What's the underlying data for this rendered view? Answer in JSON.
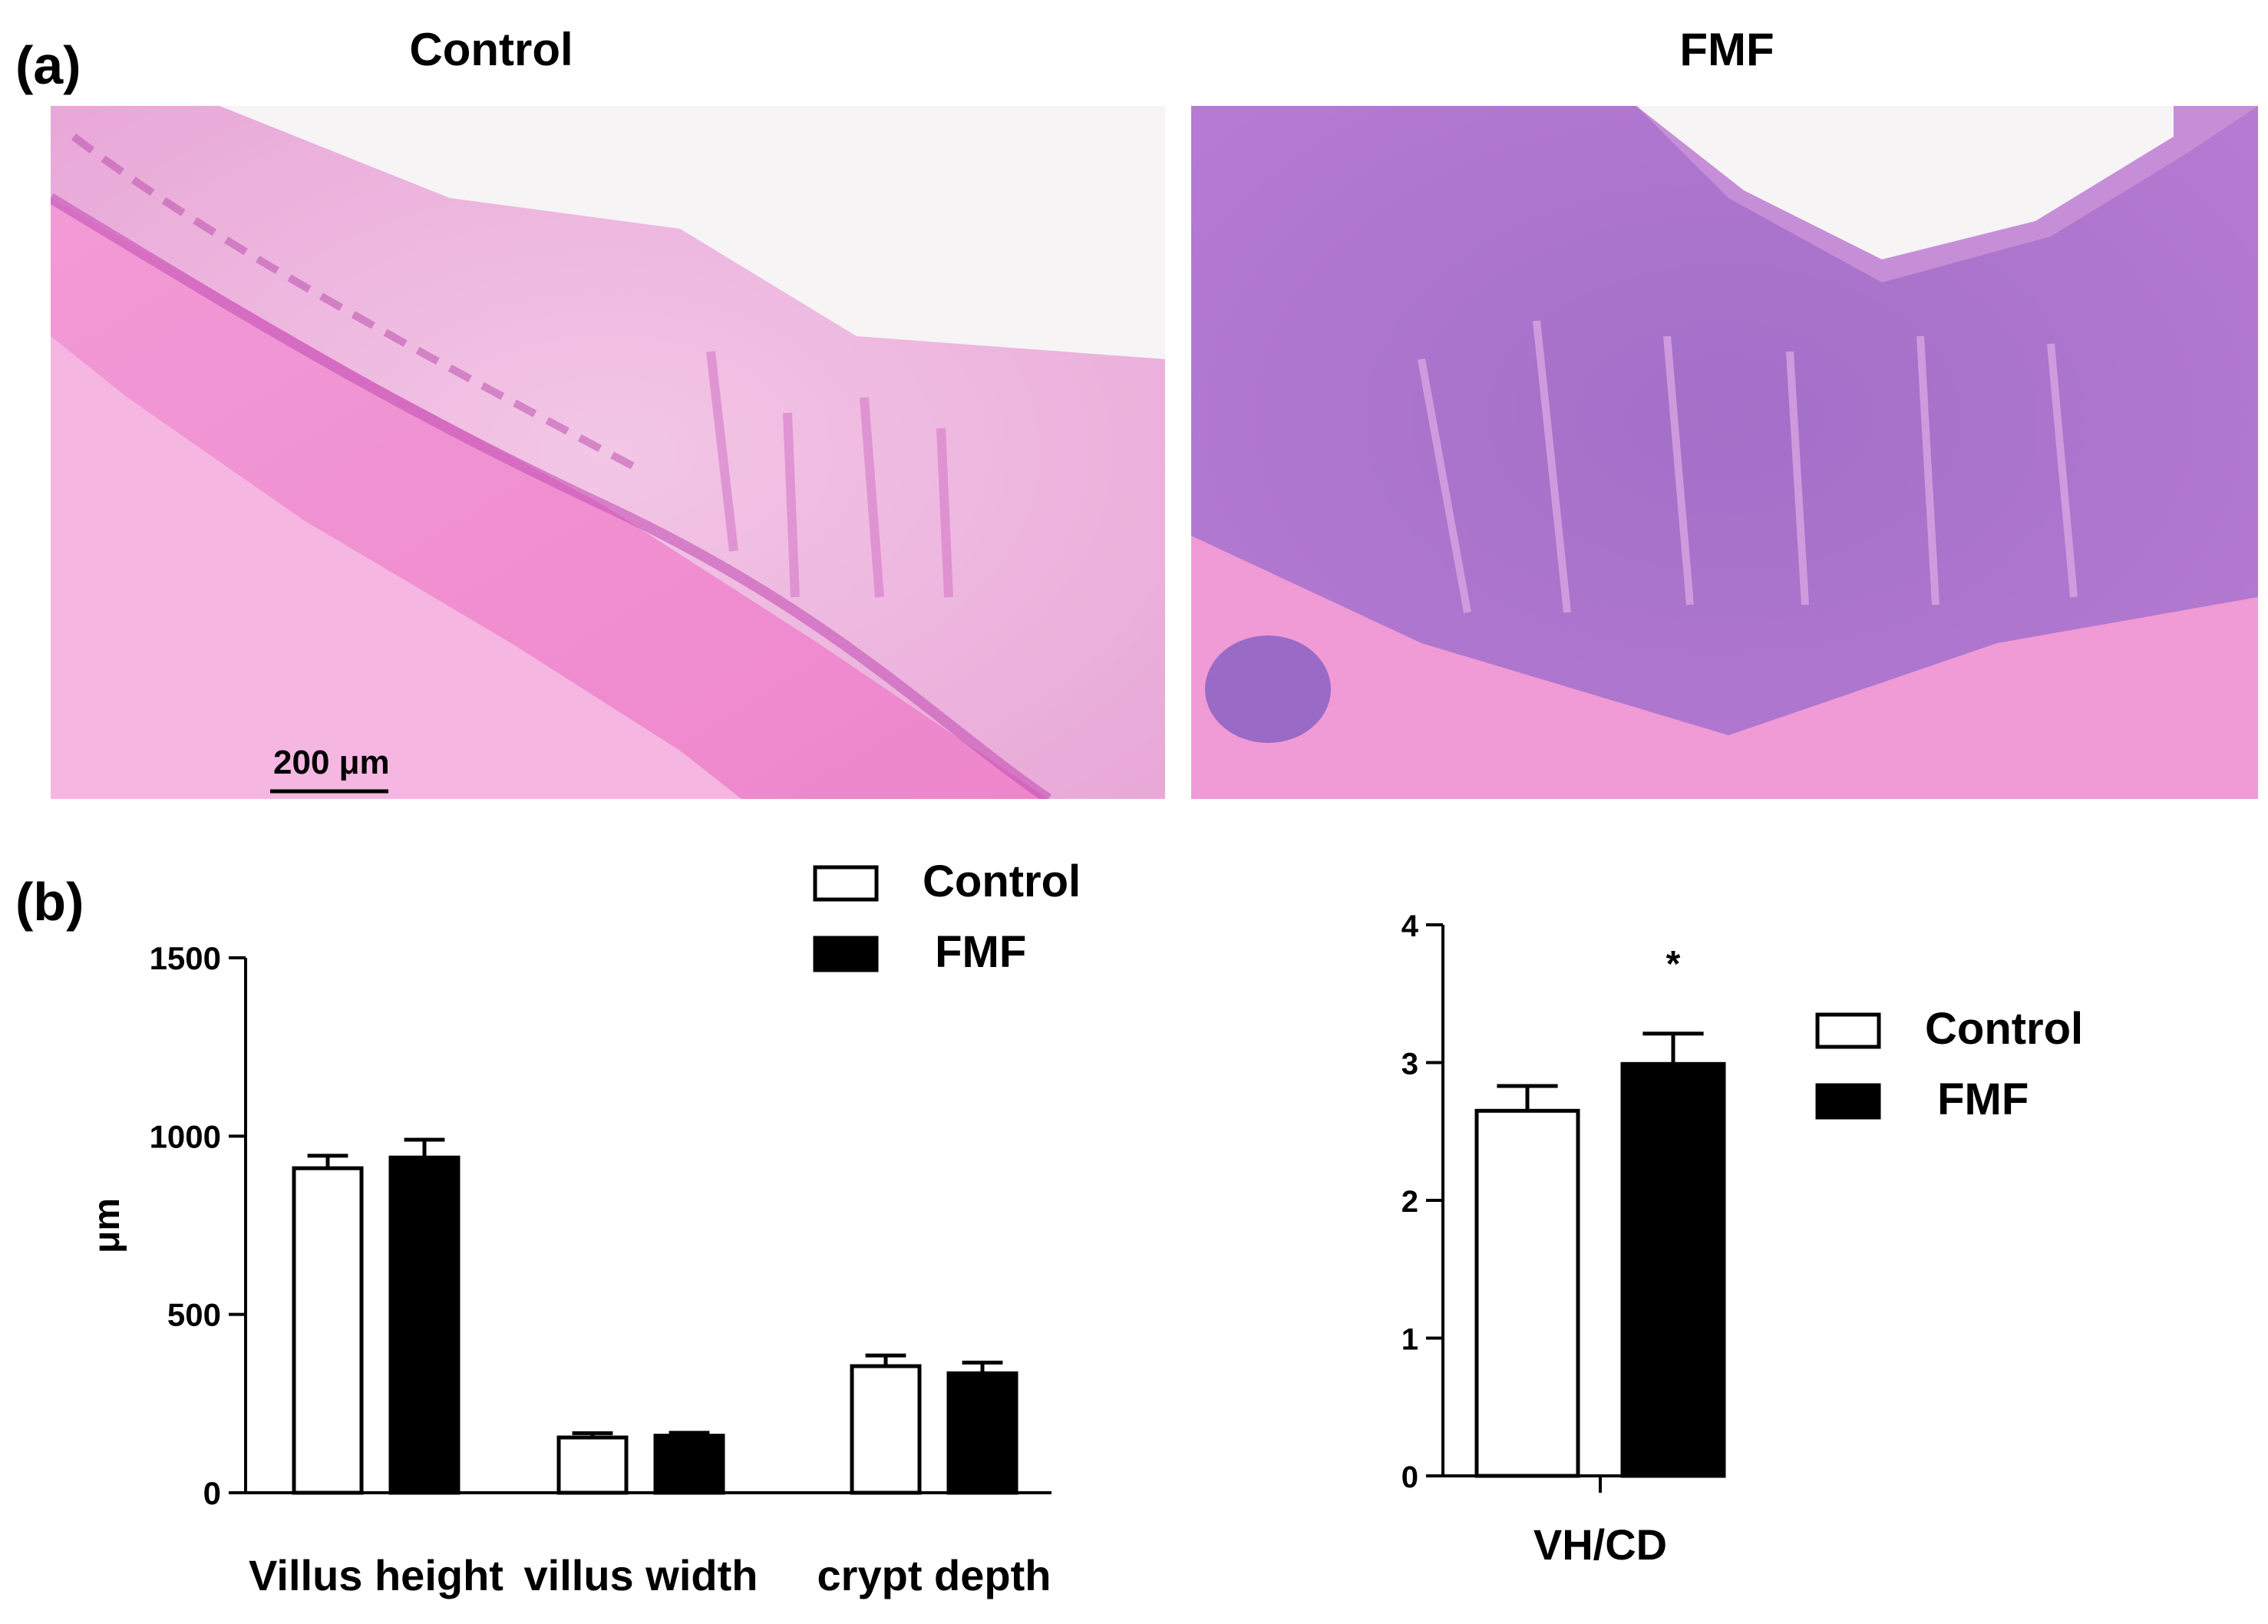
{
  "panel_a": {
    "label": "(a)",
    "images": [
      {
        "title": "Control",
        "scale_bar": "200 μm"
      },
      {
        "title": "FMF"
      }
    ]
  },
  "panel_b": {
    "label": "(b)",
    "series_colors": {
      "Control": "#ffffff",
      "FMF": "#000000"
    }
  },
  "chart_data": [
    {
      "type": "bar",
      "categories": [
        "Villus height",
        "villus width",
        "crypt depth"
      ],
      "series": [
        {
          "name": "Control",
          "values": [
            910,
            155,
            355
          ],
          "errors": [
            35,
            12,
            30
          ]
        },
        {
          "name": "FMF",
          "values": [
            940,
            160,
            335
          ],
          "errors": [
            50,
            8,
            30
          ]
        }
      ],
      "ylabel": "μm",
      "ylim": [
        0,
        1500
      ],
      "yticks": [
        "0",
        "500",
        "1000",
        "1500"
      ],
      "legend": [
        "Control",
        "FMF"
      ],
      "legend_position": "top-right",
      "grid": false
    },
    {
      "type": "bar",
      "categories": [
        "VH/CD"
      ],
      "series": [
        {
          "name": "Control",
          "values": [
            2.65
          ],
          "errors": [
            0.18
          ]
        },
        {
          "name": "FMF",
          "values": [
            2.99
          ],
          "errors": [
            0.22
          ]
        }
      ],
      "annotations": [
        "*"
      ],
      "ylim": [
        0,
        4
      ],
      "yticks": [
        "0",
        "1",
        "2",
        "3",
        "4"
      ],
      "legend": [
        "Control",
        "FMF"
      ],
      "legend_position": "right",
      "grid": false
    }
  ]
}
